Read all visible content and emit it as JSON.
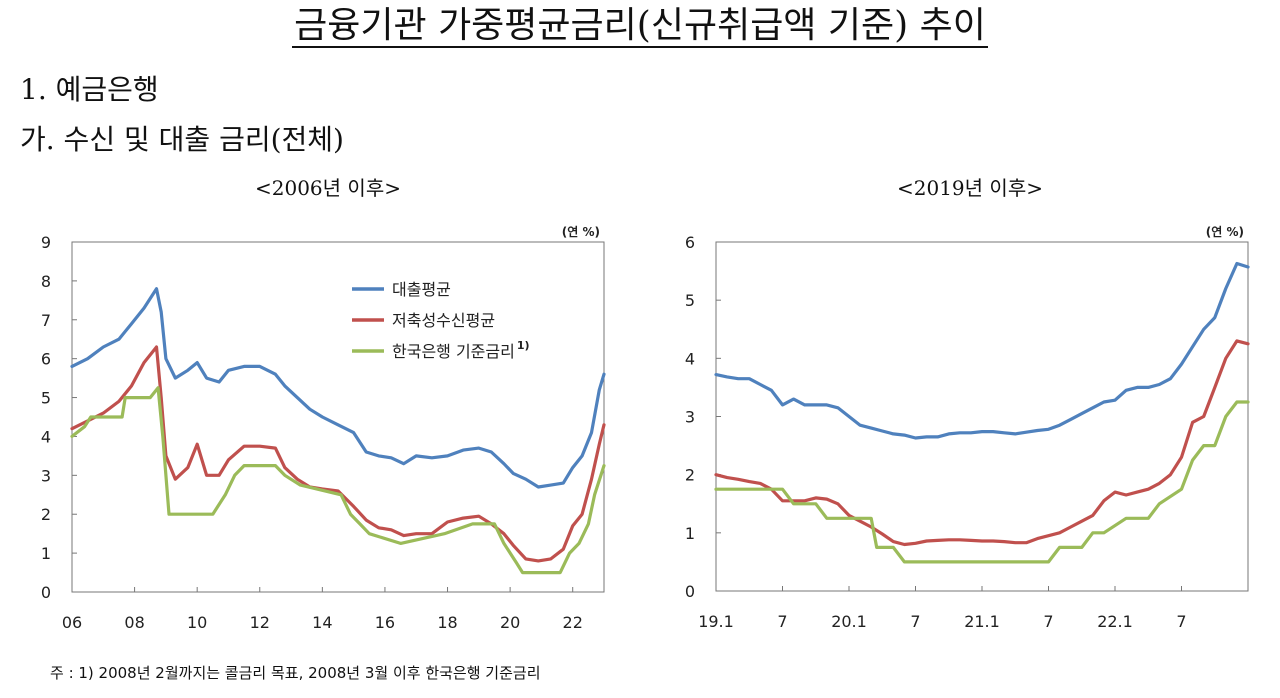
{
  "page": {
    "title": "금융기관 가중평균금리(신규취급액 기준) 추이",
    "section1": "1. 예금은행",
    "section2": "가. 수신 및 대출 금리(전체)",
    "footnote": "주 : 1) 2008년 2월까지는 콜금리 목표, 2008년 3월 이후 한국은행 기준금리"
  },
  "colors": {
    "loan": "#4f81bd",
    "deposit": "#c0504d",
    "base": "#9bbb59"
  },
  "chart_data": [
    {
      "type": "line",
      "title": "<2006년 이후>",
      "unit": "(연 %)",
      "xlim": [
        2006,
        2023
      ],
      "xticks": [
        2006,
        2008,
        2010,
        2012,
        2014,
        2016,
        2018,
        2020,
        2022
      ],
      "xtick_labels": [
        "06",
        "08",
        "10",
        "12",
        "14",
        "16",
        "18",
        "20",
        "22"
      ],
      "ylim": [
        0,
        9
      ],
      "yticks": [
        0,
        1,
        2,
        3,
        4,
        5,
        6,
        7,
        8,
        9
      ],
      "legend_position": "top-right",
      "series": [
        {
          "name": "대출평균",
          "color": "#4f81bd",
          "x": [
            2006.0,
            2006.5,
            2007.0,
            2007.5,
            2007.9,
            2008.3,
            2008.7,
            2008.85,
            2009.0,
            2009.3,
            2009.7,
            2010.0,
            2010.3,
            2010.7,
            2011.0,
            2011.5,
            2012.0,
            2012.5,
            2012.8,
            2013.2,
            2013.6,
            2014.0,
            2014.5,
            2015.0,
            2015.4,
            2015.8,
            2016.2,
            2016.6,
            2017.0,
            2017.5,
            2018.0,
            2018.5,
            2019.0,
            2019.4,
            2019.8,
            2020.1,
            2020.5,
            2020.9,
            2021.3,
            2021.7,
            2022.0,
            2022.3,
            2022.6,
            2022.85,
            2023.0
          ],
          "y": [
            5.8,
            6.0,
            6.3,
            6.5,
            6.9,
            7.3,
            7.8,
            7.2,
            6.0,
            5.5,
            5.7,
            5.9,
            5.5,
            5.4,
            5.7,
            5.8,
            5.8,
            5.6,
            5.3,
            5.0,
            4.7,
            4.5,
            4.3,
            4.1,
            3.6,
            3.5,
            3.45,
            3.3,
            3.5,
            3.45,
            3.5,
            3.65,
            3.7,
            3.6,
            3.3,
            3.05,
            2.9,
            2.7,
            2.75,
            2.8,
            3.2,
            3.5,
            4.1,
            5.2,
            5.6
          ]
        },
        {
          "name": "저축성수신평균",
          "color": "#c0504d",
          "x": [
            2006.0,
            2006.5,
            2007.0,
            2007.5,
            2007.9,
            2008.3,
            2008.7,
            2008.85,
            2009.0,
            2009.3,
            2009.7,
            2010.0,
            2010.3,
            2010.7,
            2011.0,
            2011.5,
            2012.0,
            2012.5,
            2012.8,
            2013.2,
            2013.6,
            2014.0,
            2014.5,
            2015.0,
            2015.4,
            2015.8,
            2016.2,
            2016.6,
            2017.0,
            2017.5,
            2018.0,
            2018.5,
            2019.0,
            2019.4,
            2019.8,
            2020.1,
            2020.5,
            2020.9,
            2021.3,
            2021.7,
            2022.0,
            2022.3,
            2022.6,
            2022.85,
            2023.0
          ],
          "y": [
            4.2,
            4.4,
            4.6,
            4.9,
            5.3,
            5.9,
            6.3,
            5.0,
            3.5,
            2.9,
            3.2,
            3.8,
            3.0,
            3.0,
            3.4,
            3.75,
            3.75,
            3.7,
            3.2,
            2.9,
            2.7,
            2.65,
            2.6,
            2.2,
            1.85,
            1.65,
            1.6,
            1.45,
            1.5,
            1.5,
            1.8,
            1.9,
            1.95,
            1.75,
            1.5,
            1.2,
            0.85,
            0.8,
            0.85,
            1.1,
            1.7,
            2.0,
            2.9,
            3.8,
            4.3
          ]
        },
        {
          "name": "한국은행 기준금리",
          "name_sup": "1)",
          "color": "#9bbb59",
          "x": [
            2006.0,
            2006.4,
            2006.6,
            2007.6,
            2007.7,
            2008.5,
            2008.75,
            2008.9,
            2009.1,
            2010.5,
            2010.9,
            2011.2,
            2011.5,
            2012.5,
            2012.8,
            2013.3,
            2014.6,
            2014.9,
            2015.2,
            2015.5,
            2016.5,
            2017.9,
            2018.8,
            2019.5,
            2019.8,
            2020.2,
            2020.4,
            2021.6,
            2021.9,
            2022.2,
            2022.5,
            2022.7,
            2022.9,
            2023.0
          ],
          "y": [
            4.0,
            4.25,
            4.5,
            4.5,
            5.0,
            5.0,
            5.25,
            4.0,
            2.0,
            2.0,
            2.5,
            3.0,
            3.25,
            3.25,
            3.0,
            2.75,
            2.5,
            2.0,
            1.75,
            1.5,
            1.25,
            1.5,
            1.75,
            1.75,
            1.25,
            0.75,
            0.5,
            0.5,
            1.0,
            1.25,
            1.75,
            2.5,
            3.0,
            3.25
          ]
        }
      ]
    },
    {
      "type": "line",
      "title": "<2019년 이후>",
      "unit": "(연 %)",
      "xlim": [
        0,
        48
      ],
      "xticks": [
        0,
        6,
        12,
        18,
        24,
        30,
        36,
        42
      ],
      "xtick_labels": [
        "19.1",
        "7",
        "20.1",
        "7",
        "21.1",
        "7",
        "22.1",
        "7"
      ],
      "ylim": [
        0,
        6
      ],
      "yticks": [
        0,
        1,
        2,
        3,
        4,
        5,
        6
      ],
      "series": [
        {
          "name": "대출평균",
          "color": "#4f81bd",
          "x": [
            0,
            1,
            2,
            3,
            4,
            5,
            6,
            7,
            8,
            9,
            10,
            11,
            12,
            13,
            14,
            15,
            16,
            17,
            18,
            19,
            20,
            21,
            22,
            23,
            24,
            25,
            26,
            27,
            28,
            29,
            30,
            31,
            32,
            33,
            34,
            35,
            36,
            37,
            38,
            39,
            40,
            41,
            42,
            43,
            44,
            45,
            46,
            47,
            48
          ],
          "y": [
            3.72,
            3.68,
            3.65,
            3.65,
            3.55,
            3.45,
            3.2,
            3.3,
            3.2,
            3.2,
            3.2,
            3.15,
            3.0,
            2.85,
            2.8,
            2.75,
            2.7,
            2.68,
            2.63,
            2.65,
            2.65,
            2.7,
            2.72,
            2.72,
            2.74,
            2.74,
            2.72,
            2.7,
            2.73,
            2.76,
            2.78,
            2.85,
            2.95,
            3.05,
            3.15,
            3.25,
            3.28,
            3.45,
            3.5,
            3.5,
            3.55,
            3.65,
            3.9,
            4.2,
            4.5,
            4.7,
            5.2,
            5.63,
            5.57
          ]
        },
        {
          "name": "저축성수신평균",
          "color": "#c0504d",
          "x": [
            0,
            1,
            2,
            3,
            4,
            5,
            6,
            7,
            8,
            9,
            10,
            11,
            12,
            13,
            14,
            15,
            16,
            17,
            18,
            19,
            20,
            21,
            22,
            23,
            24,
            25,
            26,
            27,
            28,
            29,
            30,
            31,
            32,
            33,
            34,
            35,
            36,
            37,
            38,
            39,
            40,
            41,
            42,
            43,
            44,
            45,
            46,
            47,
            48
          ],
          "y": [
            2.0,
            1.95,
            1.92,
            1.88,
            1.85,
            1.75,
            1.55,
            1.55,
            1.55,
            1.6,
            1.58,
            1.5,
            1.3,
            1.2,
            1.1,
            0.98,
            0.85,
            0.8,
            0.82,
            0.86,
            0.87,
            0.88,
            0.88,
            0.87,
            0.86,
            0.86,
            0.85,
            0.83,
            0.83,
            0.9,
            0.95,
            1.0,
            1.1,
            1.2,
            1.3,
            1.55,
            1.7,
            1.65,
            1.7,
            1.75,
            1.85,
            2.0,
            2.3,
            2.9,
            3.0,
            3.5,
            4.0,
            4.3,
            4.25
          ]
        },
        {
          "name": "한국은행 기준금리",
          "color": "#9bbb59",
          "x": [
            0,
            6,
            7,
            9,
            10,
            14,
            14.5,
            16,
            17,
            30,
            31,
            33,
            34,
            35,
            37,
            39,
            40,
            42,
            43,
            44,
            45,
            46,
            47,
            48
          ],
          "y": [
            1.75,
            1.75,
            1.5,
            1.5,
            1.25,
            1.25,
            0.75,
            0.75,
            0.5,
            0.5,
            0.75,
            0.75,
            1.0,
            1.0,
            1.25,
            1.25,
            1.5,
            1.75,
            2.25,
            2.5,
            2.5,
            3.0,
            3.25,
            3.25
          ]
        }
      ]
    }
  ]
}
